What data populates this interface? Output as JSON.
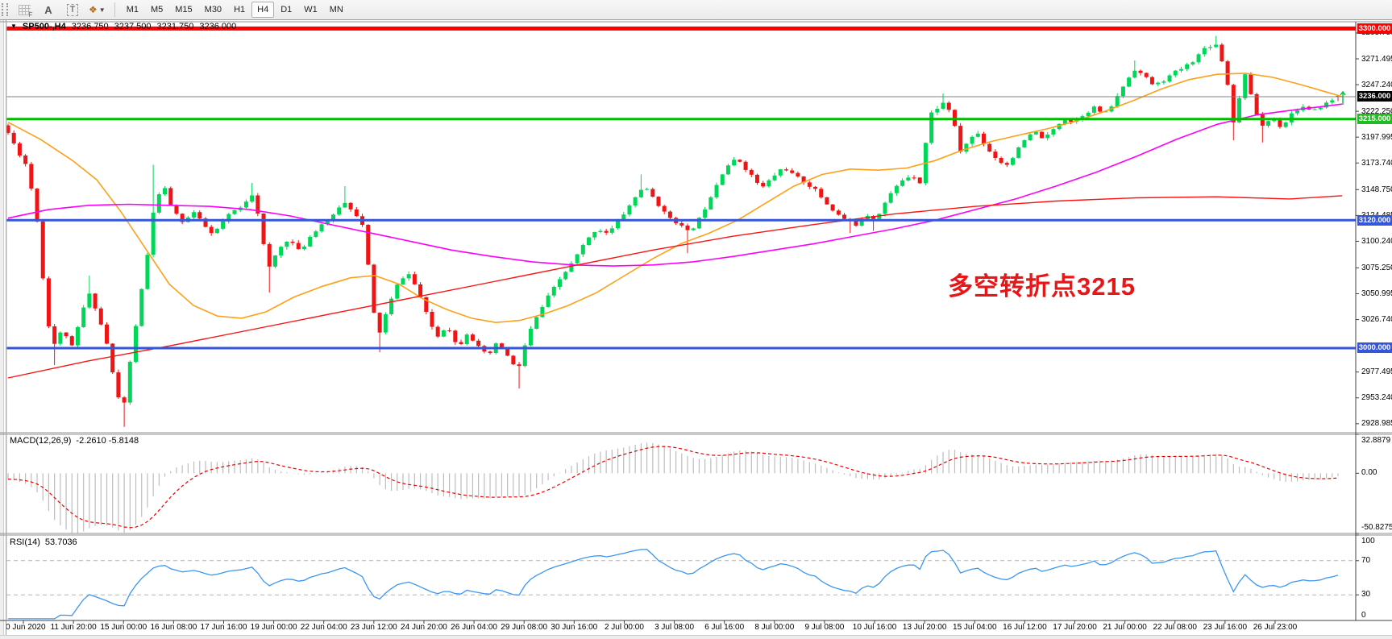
{
  "toolbar": {
    "timeframes": [
      "M1",
      "M5",
      "M15",
      "M30",
      "H1",
      "H4",
      "D1",
      "W1",
      "MN"
    ],
    "active_timeframe": "H4",
    "icons": [
      "drag-handle",
      "chart-grid-f",
      "font-a",
      "text-tool",
      "colors-picker",
      "dropdown-caret"
    ]
  },
  "chart": {
    "symbol_line": {
      "symbol": "SP500-,H4",
      "open": "3236.750",
      "high": "3237.500",
      "low": "3231.750",
      "close": "3236.000"
    },
    "annotation": {
      "text": "多空转折点3215",
      "color": "#e81616"
    },
    "macd_pane": {
      "label": "MACD(12,26,9)",
      "values": "-2.2610 -5.8148"
    },
    "rsi_pane": {
      "label": "RSI(14)",
      "value": "53.7036"
    }
  },
  "chart_data": {
    "type": "candlestick",
    "symbol": "SP500-",
    "timeframe": "H4",
    "title_ohlc": {
      "open": 3236.75,
      "high": 3237.5,
      "low": 3231.75,
      "close": 3236.0
    },
    "visible_price_range": [
      2920.6,
      3306.3
    ],
    "y_ticks": [
      "3295.750",
      "3271.495",
      "3247.240",
      "3222.250",
      "3197.995",
      "3173.740",
      "3148.750",
      "3124.485",
      "3100.240",
      "3075.250",
      "3050.995",
      "3026.740",
      "2977.495",
      "2953.240",
      "2928.985"
    ],
    "x_labels": [
      "10 Jun 2020",
      "11 Jun 20:00",
      "15 Jun 00:00",
      "16 Jun 08:00",
      "17 Jun 16:00",
      "19 Jun 00:00",
      "22 Jun 04:00",
      "23 Jun 12:00",
      "24 Jun 20:00",
      "26 Jun 04:00",
      "29 Jun 08:00",
      "30 Jun 16:00",
      "2 Jul 00:00",
      "3 Jul 08:00",
      "6 Jul 16:00",
      "8 Jul 00:00",
      "9 Jul 08:00",
      "10 Jul 16:00",
      "13 Jul 20:00",
      "15 Jul 04:00",
      "16 Jul 12:00",
      "17 Jul 20:00",
      "21 Jul 00:00",
      "22 Jul 08:00",
      "23 Jul 16:00",
      "26 Jul 23:00"
    ],
    "horizontal_lines": [
      {
        "price": 3300.0,
        "label": "3300.000",
        "color": "#fe0000",
        "thickness": 5,
        "badge_bg": "#fe0000"
      },
      {
        "price": 3236.0,
        "label": "3236.000",
        "color": "#808080",
        "thickness": 1,
        "badge_bg": "#000000"
      },
      {
        "price": 3215.0,
        "label": "3215.000",
        "color": "#00bb00",
        "thickness": 3,
        "badge_bg": "#22bb22"
      },
      {
        "price": 3120.0,
        "label": "3120.000",
        "color": "#3556d8",
        "thickness": 3,
        "badge_bg": "#3556d8"
      },
      {
        "price": 3000.0,
        "label": "3000.000",
        "color": "#3556d8",
        "thickness": 3,
        "badge_bg": "#3556d8"
      }
    ],
    "n_bars": 230,
    "seed": 11,
    "close_path": [
      [
        10,
        3202
      ],
      [
        22,
        3185
      ],
      [
        34,
        3170
      ],
      [
        46,
        3120
      ],
      [
        58,
        3030
      ],
      [
        66,
        3002
      ],
      [
        78,
        3018
      ],
      [
        90,
        3000
      ],
      [
        102,
        3035
      ],
      [
        112,
        3052
      ],
      [
        122,
        3030
      ],
      [
        132,
        3006
      ],
      [
        142,
        2968
      ],
      [
        152,
        2938
      ],
      [
        162,
        2990
      ],
      [
        172,
        3038
      ],
      [
        182,
        3082
      ],
      [
        192,
        3138
      ],
      [
        204,
        3150
      ],
      [
        215,
        3128
      ],
      [
        228,
        3118
      ],
      [
        240,
        3128
      ],
      [
        252,
        3116
      ],
      [
        264,
        3106
      ],
      [
        276,
        3118
      ],
      [
        288,
        3128
      ],
      [
        300,
        3132
      ],
      [
        312,
        3146
      ],
      [
        322,
        3122
      ],
      [
        332,
        3072
      ],
      [
        345,
        3092
      ],
      [
        358,
        3103
      ],
      [
        372,
        3090
      ],
      [
        385,
        3105
      ],
      [
        398,
        3116
      ],
      [
        412,
        3122
      ],
      [
        425,
        3138
      ],
      [
        440,
        3128
      ],
      [
        452,
        3112
      ],
      [
        458,
        3068
      ],
      [
        468,
        3008
      ],
      [
        480,
        3035
      ],
      [
        492,
        3058
      ],
      [
        505,
        3072
      ],
      [
        518,
        3055
      ],
      [
        530,
        3030
      ],
      [
        542,
        3010
      ],
      [
        555,
        3022
      ],
      [
        568,
        3000
      ],
      [
        580,
        3015
      ],
      [
        592,
        3002
      ],
      [
        605,
        2992
      ],
      [
        618,
        3006
      ],
      [
        630,
        2992
      ],
      [
        642,
        2978
      ],
      [
        655,
        3012
      ],
      [
        668,
        3032
      ],
      [
        680,
        3048
      ],
      [
        695,
        3065
      ],
      [
        710,
        3080
      ],
      [
        725,
        3098
      ],
      [
        740,
        3112
      ],
      [
        755,
        3108
      ],
      [
        770,
        3122
      ],
      [
        785,
        3138
      ],
      [
        798,
        3152
      ],
      [
        812,
        3140
      ],
      [
        825,
        3126
      ],
      [
        840,
        3118
      ],
      [
        855,
        3108
      ],
      [
        870,
        3124
      ],
      [
        885,
        3148
      ],
      [
        900,
        3170
      ],
      [
        915,
        3178
      ],
      [
        930,
        3164
      ],
      [
        945,
        3150
      ],
      [
        958,
        3160
      ],
      [
        972,
        3170
      ],
      [
        985,
        3162
      ],
      [
        1000,
        3155
      ],
      [
        1012,
        3148
      ],
      [
        1025,
        3136
      ],
      [
        1038,
        3126
      ],
      [
        1050,
        3120
      ],
      [
        1062,
        3116
      ],
      [
        1074,
        3126
      ],
      [
        1086,
        3121
      ],
      [
        1096,
        3134
      ],
      [
        1108,
        3148
      ],
      [
        1120,
        3158
      ],
      [
        1132,
        3163
      ],
      [
        1143,
        3154
      ],
      [
        1152,
        3218
      ],
      [
        1162,
        3225
      ],
      [
        1172,
        3231
      ],
      [
        1182,
        3218
      ],
      [
        1190,
        3183
      ],
      [
        1200,
        3193
      ],
      [
        1212,
        3203
      ],
      [
        1224,
        3188
      ],
      [
        1236,
        3178
      ],
      [
        1248,
        3171
      ],
      [
        1260,
        3183
      ],
      [
        1272,
        3196
      ],
      [
        1284,
        3203
      ],
      [
        1296,
        3196
      ],
      [
        1308,
        3206
      ],
      [
        1320,
        3216
      ],
      [
        1332,
        3212
      ],
      [
        1345,
        3220
      ],
      [
        1358,
        3226
      ],
      [
        1370,
        3219
      ],
      [
        1382,
        3230
      ],
      [
        1395,
        3248
      ],
      [
        1408,
        3262
      ],
      [
        1420,
        3255
      ],
      [
        1432,
        3246
      ],
      [
        1445,
        3252
      ],
      [
        1458,
        3259
      ],
      [
        1470,
        3264
      ],
      [
        1482,
        3271
      ],
      [
        1495,
        3282
      ],
      [
        1508,
        3286
      ],
      [
        1520,
        3262
      ],
      [
        1532,
        3205
      ],
      [
        1543,
        3263
      ],
      [
        1555,
        3228
      ],
      [
        1565,
        3208
      ],
      [
        1578,
        3216
      ],
      [
        1590,
        3207
      ],
      [
        1602,
        3220
      ],
      [
        1615,
        3227
      ],
      [
        1628,
        3221
      ],
      [
        1640,
        3228
      ],
      [
        1652,
        3232
      ],
      [
        1660,
        3236
      ]
    ],
    "wick_events": [
      [
        66,
        "low",
        2984
      ],
      [
        112,
        "high",
        3068
      ],
      [
        152,
        "low",
        2926
      ],
      [
        192,
        "high",
        3172
      ],
      [
        312,
        "high",
        3155
      ],
      [
        332,
        "low",
        3052
      ],
      [
        425,
        "high",
        3152
      ],
      [
        468,
        "low",
        2996
      ],
      [
        642,
        "low",
        2962
      ],
      [
        798,
        "high",
        3163
      ],
      [
        855,
        "low",
        3089
      ],
      [
        1058,
        "low",
        3108
      ],
      [
        1086,
        "low",
        3110
      ],
      [
        1172,
        "high",
        3239
      ],
      [
        1408,
        "high",
        3270
      ],
      [
        1508,
        "high",
        3293
      ],
      [
        1532,
        "low",
        3195
      ],
      [
        1565,
        "low",
        3193
      ]
    ],
    "last_bar": {
      "open": 3236.75,
      "high": 3237.5,
      "low": 3231.75,
      "close": 3236.0
    },
    "ma_orange": [
      [
        10,
        3212
      ],
      [
        50,
        3196
      ],
      [
        90,
        3176
      ],
      [
        120,
        3158
      ],
      [
        150,
        3128
      ],
      [
        180,
        3094
      ],
      [
        210,
        3060
      ],
      [
        240,
        3040
      ],
      [
        270,
        3030
      ],
      [
        300,
        3028
      ],
      [
        330,
        3034
      ],
      [
        365,
        3048
      ],
      [
        400,
        3058
      ],
      [
        435,
        3066
      ],
      [
        465,
        3068
      ],
      [
        495,
        3060
      ],
      [
        525,
        3046
      ],
      [
        555,
        3036
      ],
      [
        585,
        3028
      ],
      [
        615,
        3024
      ],
      [
        645,
        3026
      ],
      [
        675,
        3032
      ],
      [
        705,
        3040
      ],
      [
        740,
        3052
      ],
      [
        775,
        3068
      ],
      [
        810,
        3084
      ],
      [
        845,
        3098
      ],
      [
        880,
        3108
      ],
      [
        915,
        3120
      ],
      [
        950,
        3136
      ],
      [
        985,
        3152
      ],
      [
        1020,
        3163
      ],
      [
        1055,
        3168
      ],
      [
        1090,
        3167
      ],
      [
        1125,
        3169
      ],
      [
        1160,
        3176
      ],
      [
        1195,
        3186
      ],
      [
        1230,
        3194
      ],
      [
        1265,
        3200
      ],
      [
        1300,
        3206
      ],
      [
        1335,
        3213
      ],
      [
        1370,
        3222
      ],
      [
        1405,
        3232
      ],
      [
        1440,
        3243
      ],
      [
        1475,
        3252
      ],
      [
        1510,
        3257
      ],
      [
        1545,
        3258
      ],
      [
        1580,
        3254
      ],
      [
        1615,
        3247
      ],
      [
        1665,
        3236
      ]
    ],
    "ma_magenta": [
      [
        10,
        3122
      ],
      [
        60,
        3130
      ],
      [
        110,
        3134
      ],
      [
        160,
        3135
      ],
      [
        210,
        3134
      ],
      [
        260,
        3133
      ],
      [
        310,
        3130
      ],
      [
        360,
        3124
      ],
      [
        410,
        3116
      ],
      [
        460,
        3108
      ],
      [
        510,
        3100
      ],
      [
        560,
        3092
      ],
      [
        610,
        3086
      ],
      [
        660,
        3081
      ],
      [
        710,
        3078
      ],
      [
        760,
        3077
      ],
      [
        810,
        3078
      ],
      [
        860,
        3081
      ],
      [
        910,
        3086
      ],
      [
        960,
        3092
      ],
      [
        1010,
        3098
      ],
      [
        1060,
        3105
      ],
      [
        1110,
        3112
      ],
      [
        1160,
        3120
      ],
      [
        1210,
        3130
      ],
      [
        1260,
        3140
      ],
      [
        1310,
        3152
      ],
      [
        1360,
        3165
      ],
      [
        1410,
        3180
      ],
      [
        1460,
        3196
      ],
      [
        1510,
        3210
      ],
      [
        1560,
        3219
      ],
      [
        1610,
        3224
      ],
      [
        1665,
        3229
      ]
    ],
    "ma_red": [
      [
        10,
        2972
      ],
      [
        110,
        2988
      ],
      [
        210,
        3002
      ],
      [
        310,
        3017
      ],
      [
        410,
        3032
      ],
      [
        510,
        3047
      ],
      [
        610,
        3062
      ],
      [
        710,
        3077
      ],
      [
        810,
        3092
      ],
      [
        910,
        3105
      ],
      [
        1010,
        3116
      ],
      [
        1110,
        3126
      ],
      [
        1210,
        3133
      ],
      [
        1310,
        3138
      ],
      [
        1410,
        3141
      ],
      [
        1510,
        3142
      ],
      [
        1600,
        3140
      ],
      [
        1665,
        3143
      ]
    ],
    "macd": {
      "fast": 12,
      "slow": 26,
      "signal": 9,
      "current_macd": -2.261,
      "current_signal": -5.8148,
      "display_max": 32.8879,
      "display_min": -50.8275,
      "ticks": [
        {
          "v": 32.8879,
          "label": "32.8879"
        },
        {
          "v": 0,
          "label": "0.00"
        },
        {
          "v": -50.8275,
          "label": "-50.8275"
        }
      ]
    },
    "rsi": {
      "period": 14,
      "current": 53.7036,
      "range": [
        0,
        100
      ],
      "guides": [
        70,
        30
      ],
      "ticks": [
        {
          "v": 100,
          "label": "100"
        },
        {
          "v": 70,
          "label": "70"
        },
        {
          "v": 30,
          "label": "30"
        },
        {
          "v": 0,
          "label": "0"
        }
      ]
    },
    "colors": {
      "up": "#00d658",
      "down": "#f01414",
      "ma_fast": "#ffa018",
      "ma_mid": "#ff00ff",
      "ma_slow": "#ff1212",
      "macd_hist": "#bdbdbd",
      "macd_signal": "#ee0000",
      "rsi_line": "#3c96f0",
      "guide_dash": "#b4b4b4",
      "current_line": "#808080"
    }
  }
}
